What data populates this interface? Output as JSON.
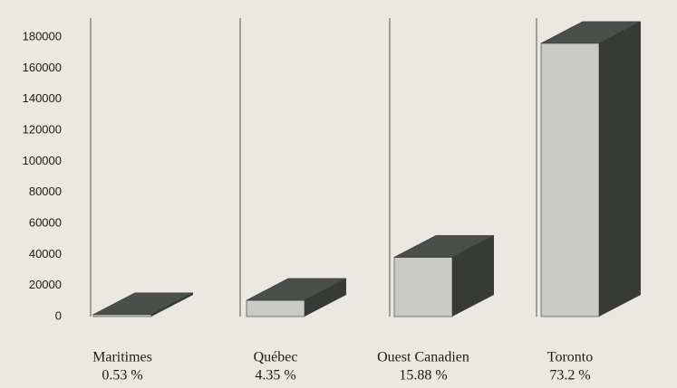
{
  "chart_data": {
    "type": "bar3d",
    "categories": [
      "Maritimes",
      "Québec",
      "Ouest Canadien",
      "Toronto"
    ],
    "category_percent_labels": [
      "0.53 %",
      "4.35 %",
      "15.88 %",
      "73.2 %"
    ],
    "values": [
      1300,
      10500,
      38200,
      176000
    ],
    "colors": {
      "front": "#c9c9c5",
      "top": "#4b4f4b",
      "side": "#383a37"
    },
    "ylim": [
      0,
      180000
    ],
    "yticks": [
      0,
      20000,
      40000,
      60000,
      80000,
      100000,
      120000,
      140000,
      160000,
      180000
    ]
  }
}
